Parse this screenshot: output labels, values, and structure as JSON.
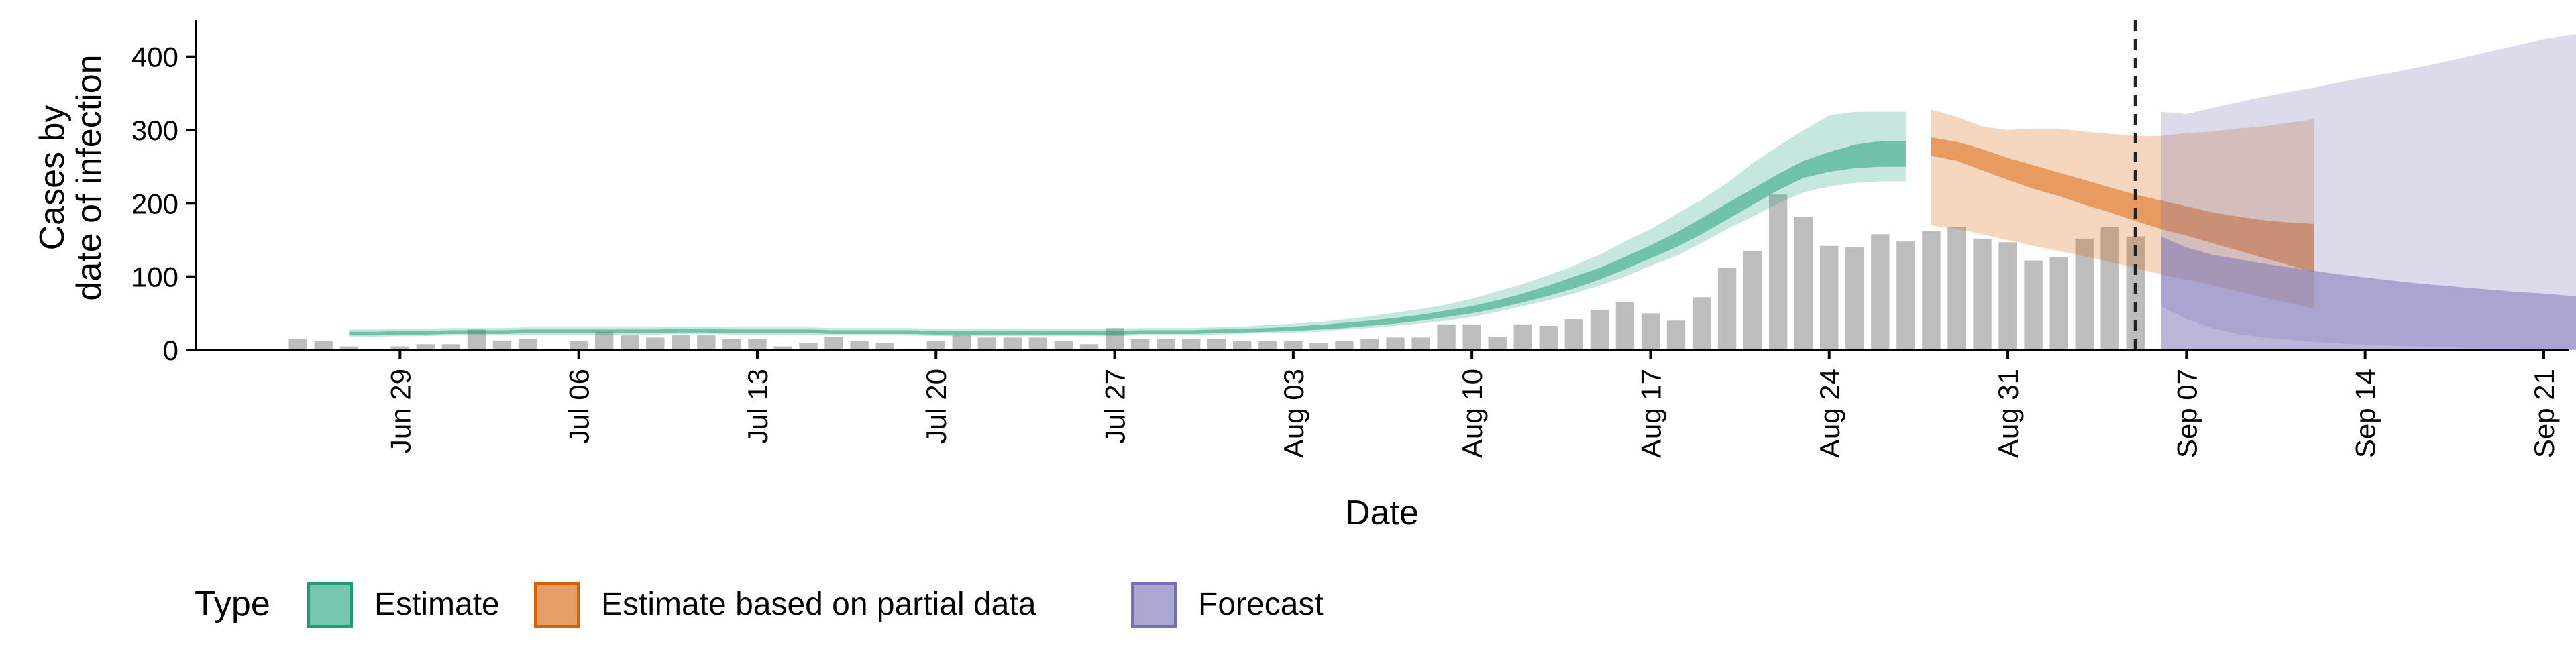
{
  "chart_data": {
    "type": "area",
    "xlabel": "Date",
    "ylabel": [
      "Cases by",
      "date of infection"
    ],
    "ylim": [
      0,
      450
    ],
    "xlim": [
      "2021-06-21",
      "2021-09-22"
    ],
    "yticks": [
      0,
      100,
      200,
      300,
      400
    ],
    "xticks": [
      {
        "date": "2021-06-29",
        "label": "Jun 29"
      },
      {
        "date": "2021-07-06",
        "label": "Jul 06"
      },
      {
        "date": "2021-07-13",
        "label": "Jul 13"
      },
      {
        "date": "2021-07-20",
        "label": "Jul 20"
      },
      {
        "date": "2021-07-27",
        "label": "Jul 27"
      },
      {
        "date": "2021-08-03",
        "label": "Aug 03"
      },
      {
        "date": "2021-08-10",
        "label": "Aug 10"
      },
      {
        "date": "2021-08-17",
        "label": "Aug 17"
      },
      {
        "date": "2021-08-24",
        "label": "Aug 24"
      },
      {
        "date": "2021-08-31",
        "label": "Aug 31"
      },
      {
        "date": "2021-09-07",
        "label": "Sep 07"
      },
      {
        "date": "2021-09-14",
        "label": "Sep 14"
      },
      {
        "date": "2021-09-21",
        "label": "Sep 21"
      }
    ],
    "grid": false,
    "vline_date": "2021-09-05",
    "observed_cases": {
      "start_date": "2021-06-25",
      "bar_color": "#bdbdbd",
      "values": [
        15,
        12,
        5,
        2,
        5,
        8,
        8,
        28,
        13,
        15,
        2,
        12,
        25,
        20,
        17,
        20,
        20,
        15,
        15,
        5,
        10,
        18,
        12,
        10,
        2,
        12,
        20,
        17,
        17,
        17,
        12,
        8,
        30,
        15,
        15,
        15,
        15,
        12,
        12,
        12,
        10,
        12,
        15,
        17,
        17,
        35,
        35,
        18,
        35,
        33,
        42,
        55,
        65,
        50,
        40,
        72,
        112,
        135,
        212,
        182,
        142,
        140,
        158,
        148,
        162,
        168,
        152,
        147,
        122,
        127,
        152,
        168,
        155
      ]
    },
    "series": [
      {
        "name": "Estimate",
        "fill": "#1b9e77",
        "start_date": "2021-06-27",
        "lower90": [
          18,
          18,
          19,
          19,
          20,
          20,
          20,
          21,
          21,
          21,
          21,
          21,
          21,
          22,
          22,
          21,
          21,
          21,
          21,
          20,
          20,
          20,
          20,
          19,
          19,
          19,
          19,
          19,
          19,
          19,
          19,
          20,
          20,
          20,
          21,
          22,
          23,
          24,
          25,
          28,
          30,
          33,
          36,
          40,
          45,
          52,
          60,
          68,
          77,
          88,
          100,
          115,
          128,
          146,
          165,
          182,
          200,
          215,
          223,
          228,
          230,
          230
        ],
        "lower50": [
          20,
          20,
          21,
          21,
          22,
          22,
          22,
          23,
          23,
          23,
          23,
          23,
          23,
          24,
          24,
          23,
          23,
          23,
          23,
          22,
          22,
          22,
          22,
          21,
          21,
          21,
          21,
          21,
          21,
          21,
          21,
          22,
          22,
          22,
          23,
          24,
          25,
          26,
          28,
          30,
          33,
          36,
          40,
          45,
          50,
          57,
          65,
          74,
          84,
          96,
          110,
          125,
          140,
          158,
          178,
          198,
          218,
          235,
          243,
          248,
          250,
          250
        ],
        "upper50": [
          25,
          25,
          26,
          26,
          27,
          27,
          27,
          28,
          28,
          28,
          28,
          28,
          28,
          29,
          29,
          28,
          28,
          28,
          28,
          27,
          27,
          27,
          27,
          26,
          26,
          26,
          26,
          26,
          26,
          26,
          26,
          27,
          27,
          27,
          28,
          29,
          30,
          32,
          34,
          37,
          40,
          44,
          48,
          54,
          60,
          68,
          77,
          88,
          100,
          112,
          127,
          143,
          160,
          180,
          200,
          220,
          240,
          258,
          270,
          280,
          285,
          285
        ],
        "upper90": [
          28,
          28,
          29,
          29,
          30,
          30,
          30,
          31,
          31,
          31,
          31,
          31,
          31,
          32,
          32,
          31,
          31,
          31,
          31,
          30,
          30,
          30,
          30,
          29,
          29,
          29,
          29,
          29,
          29,
          29,
          29,
          30,
          30,
          30,
          31,
          32,
          34,
          36,
          38,
          42,
          46,
          51,
          56,
          62,
          70,
          80,
          90,
          102,
          115,
          130,
          148,
          165,
          185,
          205,
          228,
          255,
          278,
          300,
          320,
          325,
          325,
          325
        ]
      },
      {
        "name": "Estimate based on partial data",
        "fill": "#d95f02",
        "start_date": "2021-08-28",
        "lower90": [
          170,
          165,
          158,
          150,
          142,
          135,
          128,
          120,
          112,
          103,
          96,
          88,
          80,
          72,
          64,
          56
        ],
        "lower50": [
          265,
          258,
          245,
          232,
          220,
          210,
          198,
          188,
          176,
          165,
          156,
          146,
          136,
          126,
          116,
          106
        ],
        "upper50": [
          290,
          284,
          274,
          262,
          252,
          242,
          232,
          222,
          212,
          204,
          196,
          188,
          182,
          177,
          174,
          172
        ],
        "upper90": [
          328,
          318,
          305,
          300,
          302,
          302,
          298,
          295,
          292,
          292,
          296,
          298,
          302,
          305,
          310,
          315
        ]
      },
      {
        "name": "Forecast",
        "fill": "#7570b3",
        "start_date": "2021-09-06",
        "lower90": [
          60,
          42,
          30,
          22,
          17,
          14,
          11,
          9,
          7,
          6,
          5,
          4,
          3,
          2,
          2,
          1,
          1,
          1,
          1
        ],
        "lower50": [
          0,
          0,
          0,
          0,
          0,
          0,
          0,
          0,
          0,
          0,
          0,
          0,
          0,
          0,
          0,
          0,
          0,
          0,
          0
        ],
        "upper50": [
          155,
          140,
          130,
          124,
          118,
          113,
          108,
          103,
          99,
          95,
          91,
          88,
          85,
          82,
          79,
          77,
          74,
          72,
          70
        ],
        "upper90": [
          325,
          322,
          330,
          338,
          345,
          352,
          358,
          365,
          372,
          378,
          385,
          392,
          400,
          408,
          416,
          424,
          430,
          432,
          432
        ]
      }
    ],
    "legend": {
      "title": "Type",
      "position": "bottom-left",
      "entries": [
        "Estimate",
        "Estimate based on partial data",
        "Forecast"
      ]
    }
  }
}
